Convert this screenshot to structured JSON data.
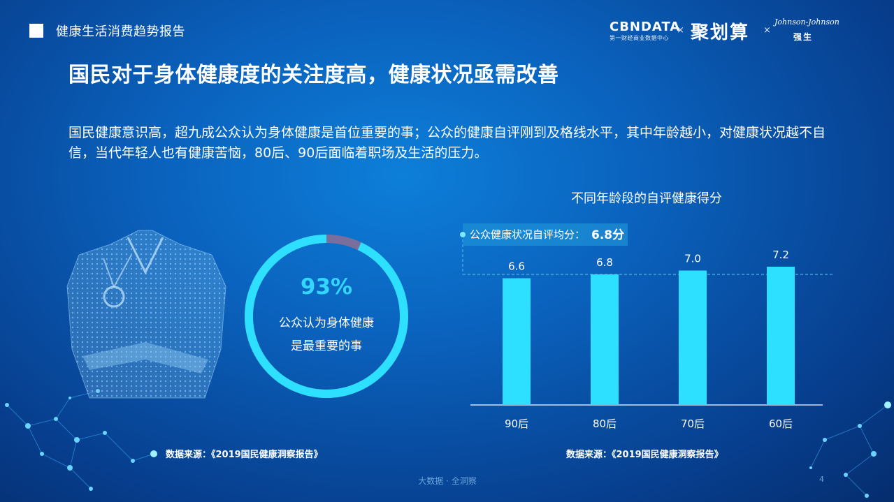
{
  "header": {
    "title": "健康生活消费趋势报告"
  },
  "logos": {
    "cbn_main": "CBNDATA",
    "cbn_sub": "第一财经商业数据中心",
    "sep": "×",
    "jhs": "聚划算",
    "jj": "Johnson-Johnson",
    "qiangsheng": "强生"
  },
  "main_title": "国民对于身体健康度的关注度高，健康状况亟需改善",
  "intro": "国民健康意识高，超九成公众认为身体健康是首位重要的事；公众的健康自评刚到及格线水平，其中年龄越小，对健康状况越不自信，当代年轻人也有健康苦恼，80后、90后面临着职场及生活的压力。",
  "donut": {
    "percent_label": "93%",
    "percent_value": 0.93,
    "line1": "公众认为身体健康",
    "line2": "是最重要的事",
    "color_main": "#2ee0ff",
    "color_rest": "#7a6e9c"
  },
  "source_left": "数据来源：《2019国民健康洞察报告》",
  "source_right": "数据来源：《2019国民健康洞察报告》",
  "chart_data": {
    "type": "bar",
    "title": "不同年龄段的自评健康得分",
    "categories": [
      "90后",
      "80后",
      "70后",
      "60后"
    ],
    "values": [
      6.6,
      6.8,
      7.0,
      7.2
    ],
    "value_labels": [
      "6.6",
      "6.8",
      "7.0",
      "7.2"
    ],
    "average_label": "公众健康状况自评均分：",
    "average_value_label": "6.8分",
    "average": 6.8,
    "bar_color": "#2ee0ff",
    "grid": false
  },
  "footer": {
    "center": "大数据 · 全洞察",
    "page": "4"
  }
}
